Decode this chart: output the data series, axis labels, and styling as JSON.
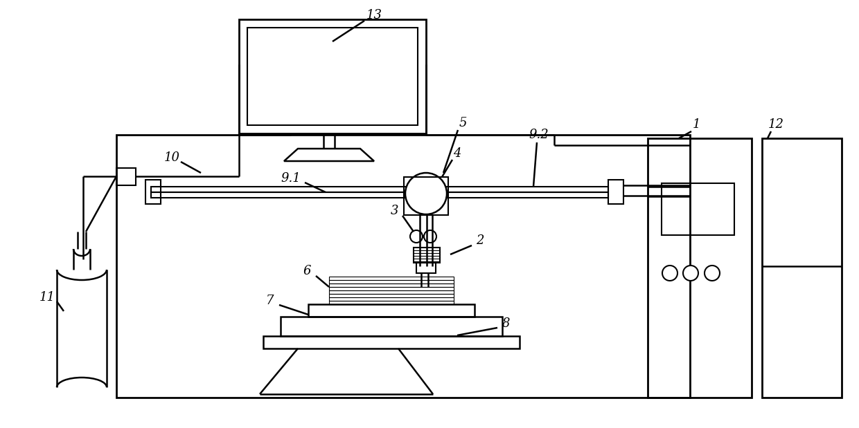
{
  "background_color": "#ffffff",
  "line_color": "#000000",
  "lw": 1.8,
  "fig_width": 12.4,
  "fig_height": 6.19
}
